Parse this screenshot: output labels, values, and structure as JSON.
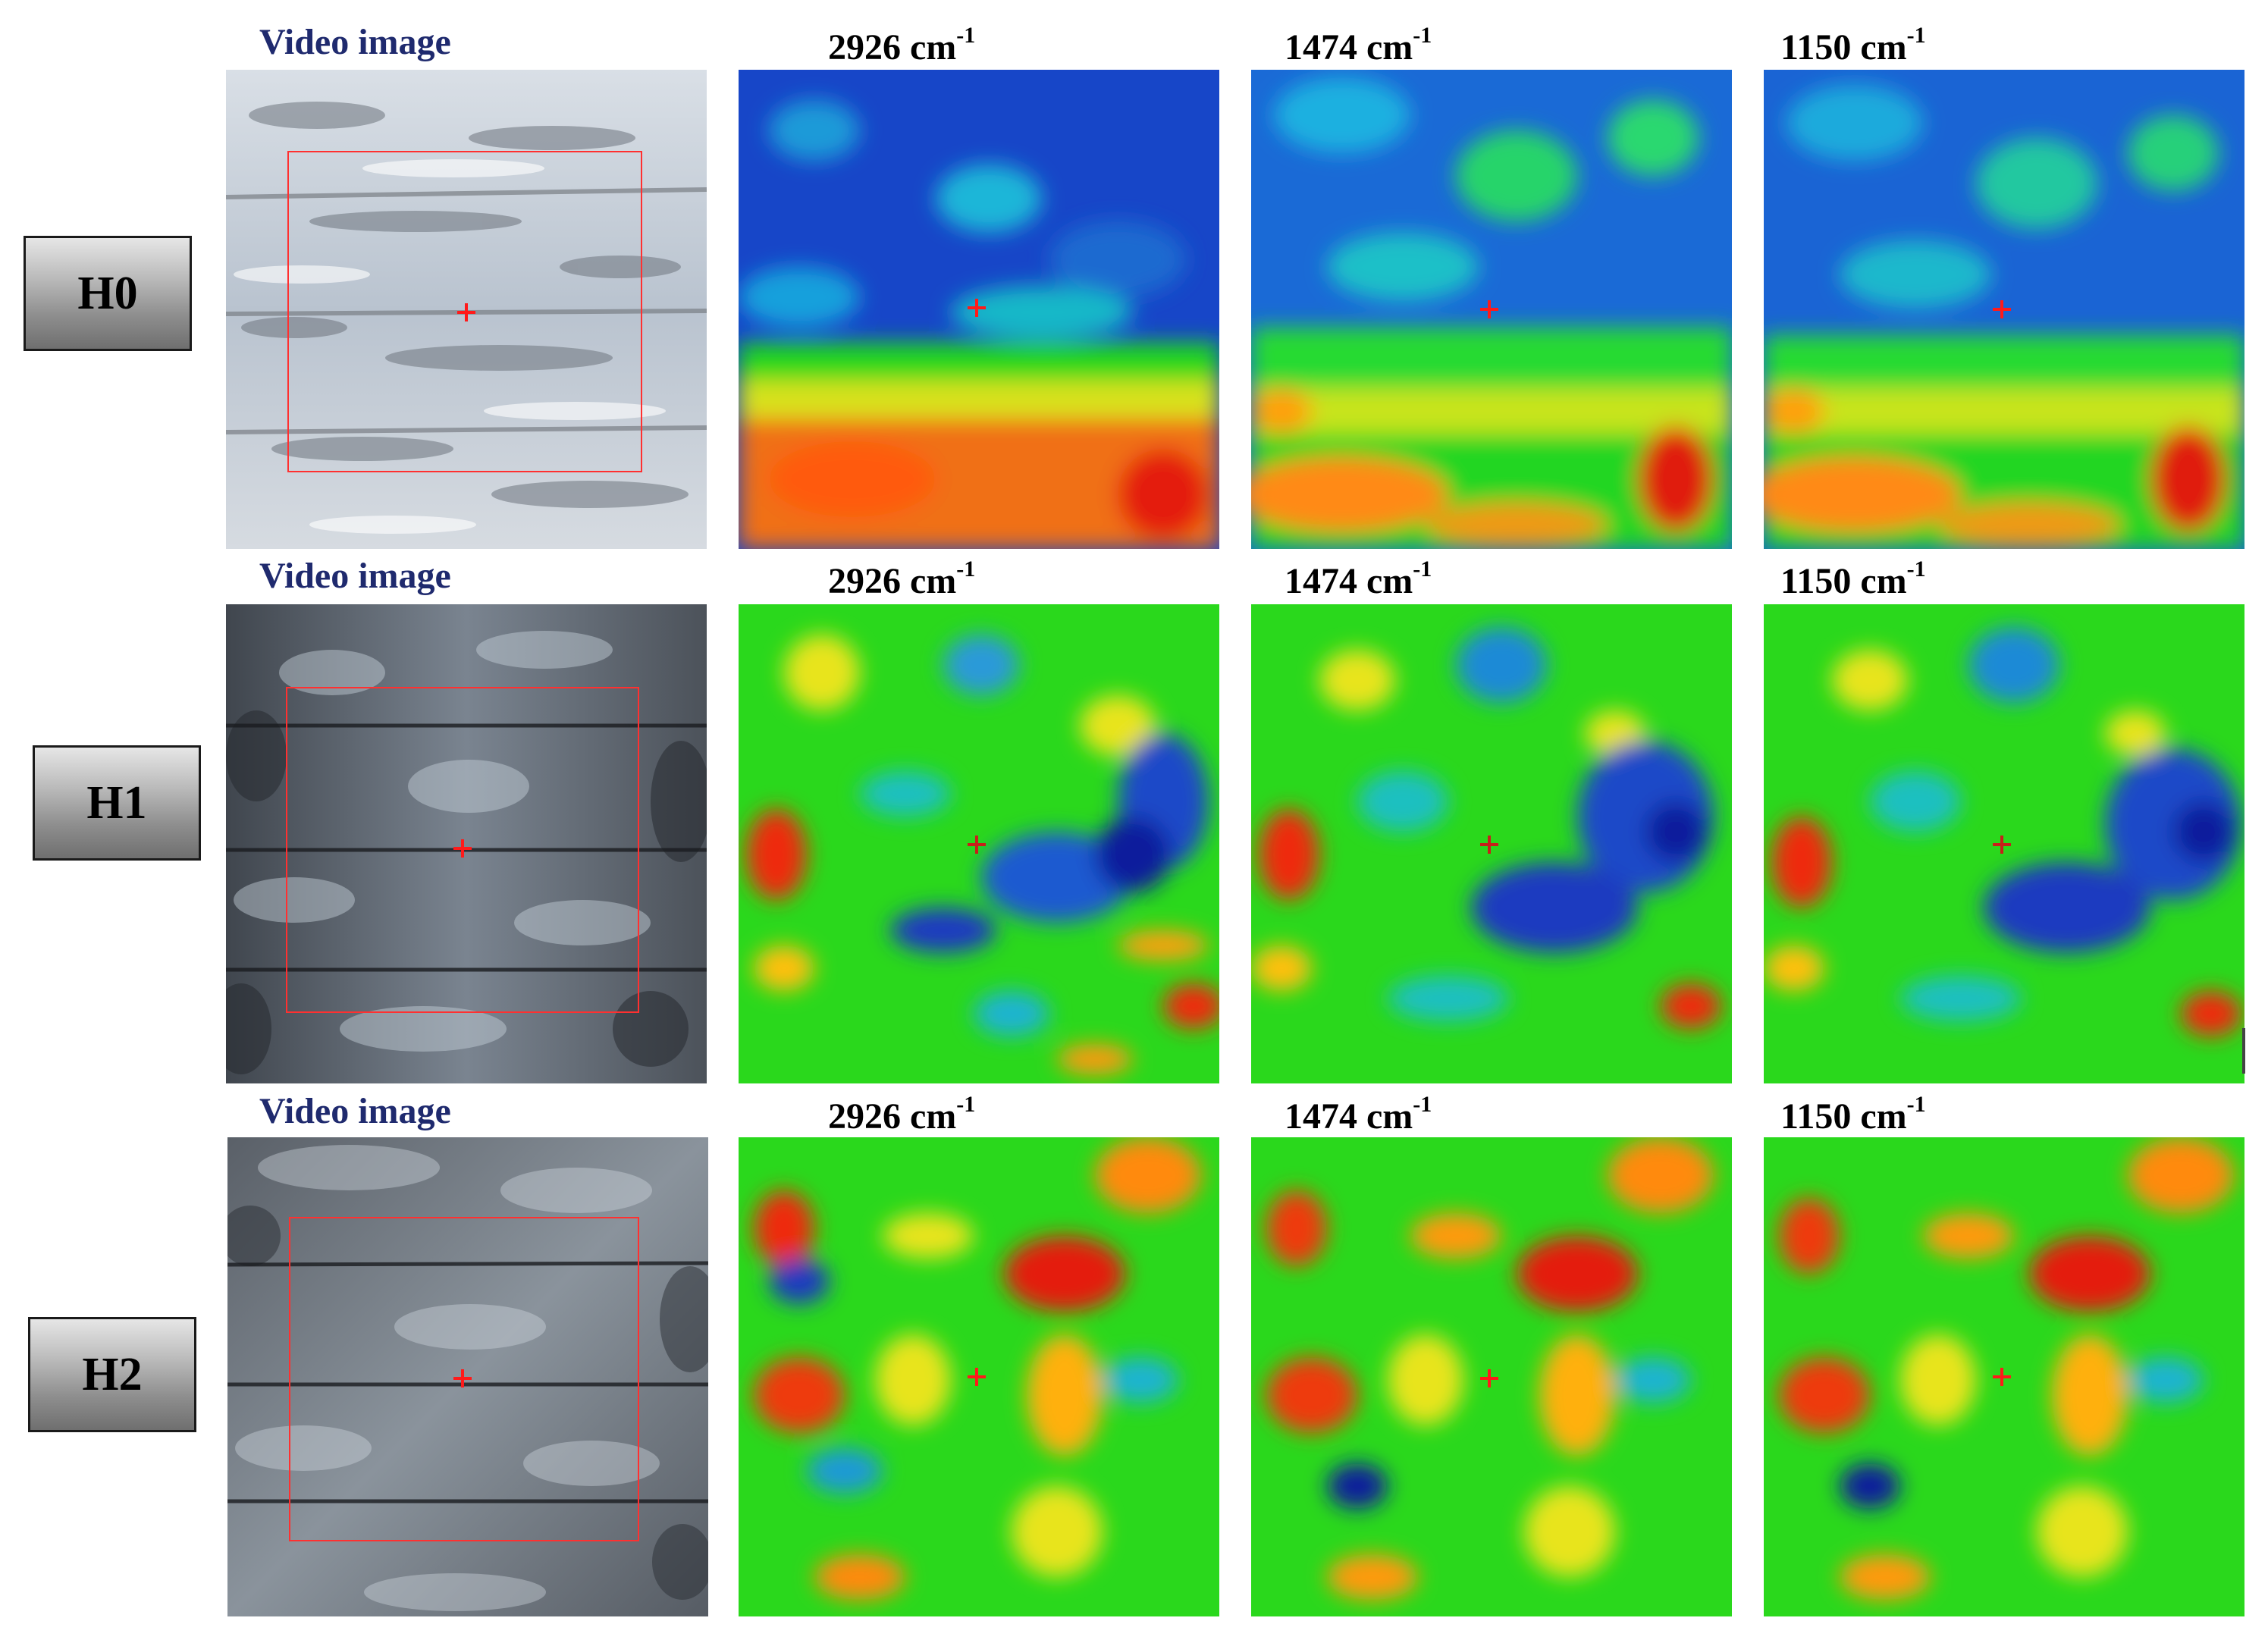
{
  "rows": [
    {
      "id": "H0",
      "label": "H0",
      "video_title": "Video image",
      "map_titles": [
        {
          "main": "2926 cm",
          "sup": "-1"
        },
        {
          "main": "1474 cm",
          "sup": "-1"
        },
        {
          "main": "1150 cm",
          "sup": "-1"
        }
      ]
    },
    {
      "id": "H1",
      "label": "H1",
      "video_title": "Video image",
      "map_titles": [
        {
          "main": "2926 cm",
          "sup": "-1"
        },
        {
          "main": "1474 cm",
          "sup": "-1"
        },
        {
          "main": "1150 cm",
          "sup": "-1"
        }
      ]
    },
    {
      "id": "H2",
      "label": "H2",
      "video_title": "Video image",
      "map_titles": [
        {
          "main": "2926 cm",
          "sup": "-1"
        },
        {
          "main": "1474 cm",
          "sup": "-1"
        },
        {
          "main": "1150 cm",
          "sup": "-1"
        }
      ]
    }
  ],
  "colors": {
    "video_title": "#1f2a6e",
    "crosshair": "#ff1a1a",
    "roi_box": "#ff3030",
    "colormap": [
      "#0a1a9c",
      "#1e5fd6",
      "#18b4e6",
      "#12d27a",
      "#2bdc10",
      "#e8e61a",
      "#ff9810",
      "#ee2a0a",
      "#d10808"
    ]
  },
  "icons": {
    "marker": "red-crosshair-icon"
  }
}
